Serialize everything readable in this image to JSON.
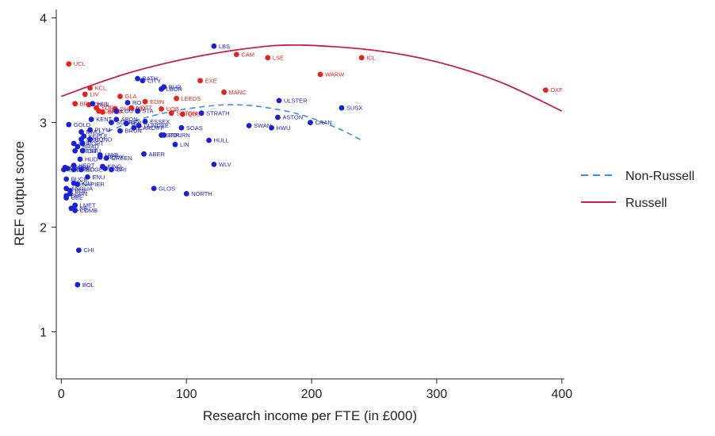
{
  "chart_data": {
    "type": "scatter",
    "title": "",
    "xlabel": "Research income per FTE (in £000)",
    "ylabel": "REF output score",
    "xlim": [
      -4,
      402
    ],
    "ylim": [
      0.55,
      4.08
    ],
    "xticks": [
      0,
      100,
      200,
      300,
      400
    ],
    "yticks": [
      1,
      2,
      3,
      4
    ],
    "grid": false,
    "legend_position": "right",
    "colors": {
      "russell": "#e8221a",
      "non_russell": "#1a1fd8",
      "russell_fit": "#c8204e",
      "non_russell_fit": "#3a8fe0"
    },
    "series": [
      {
        "name": "Russell",
        "points": [
          {
            "label": "UCL",
            "x": 6,
            "y": 3.56
          },
          {
            "label": "KCL",
            "x": 23,
            "y": 3.33
          },
          {
            "label": "LIV",
            "x": 19,
            "y": 3.27
          },
          {
            "label": "BRIS",
            "x": 11,
            "y": 3.18
          },
          {
            "label": "QMUL",
            "x": 22,
            "y": 3.17
          },
          {
            "label": "YORK",
            "x": 28,
            "y": 3.14
          },
          {
            "label": "CARD",
            "x": 30,
            "y": 3.11
          },
          {
            "label": "SHEF",
            "x": 33,
            "y": 3.1
          },
          {
            "label": "GLA",
            "x": 47,
            "y": 3.25
          },
          {
            "label": "DURHAM",
            "x": 43,
            "y": 3.13
          },
          {
            "label": "NOTT",
            "x": 56,
            "y": 3.14
          },
          {
            "label": "EDIN",
            "x": 67,
            "y": 3.2
          },
          {
            "label": "LEEDS",
            "x": 92,
            "y": 3.23
          },
          {
            "label": "UOB",
            "x": 80,
            "y": 3.13
          },
          {
            "label": "SOTON",
            "x": 88,
            "y": 3.09
          },
          {
            "label": "QUB",
            "x": 97,
            "y": 3.08
          },
          {
            "label": "EXE",
            "x": 111,
            "y": 3.4
          },
          {
            "label": "MANC",
            "x": 130,
            "y": 3.29
          },
          {
            "label": "CAM",
            "x": 140,
            "y": 3.65
          },
          {
            "label": "LSE",
            "x": 165,
            "y": 3.62
          },
          {
            "label": "WARW",
            "x": 207,
            "y": 3.46
          },
          {
            "label": "ICL",
            "x": 240,
            "y": 3.62
          },
          {
            "label": "OXF",
            "x": 387,
            "y": 3.31
          }
        ]
      },
      {
        "name": "Non-Russell",
        "points": [
          {
            "label": "LBS",
            "x": 122,
            "y": 3.73
          },
          {
            "label": "BATH",
            "x": 61,
            "y": 3.42
          },
          {
            "label": "CITY",
            "x": 65,
            "y": 3.4
          },
          {
            "label": "BUR",
            "x": 82,
            "y": 3.34
          },
          {
            "label": "LBOR",
            "x": 80,
            "y": 3.32
          },
          {
            "label": "ULSTER",
            "x": 174,
            "y": 3.21
          },
          {
            "label": "SUSX",
            "x": 224,
            "y": 3.14
          },
          {
            "label": "RO",
            "x": 53,
            "y": 3.19
          },
          {
            "label": "HUL",
            "x": 25,
            "y": 3.18
          },
          {
            "label": "LOU",
            "x": 44,
            "y": 3.11
          },
          {
            "label": "STA",
            "x": 61,
            "y": 3.11
          },
          {
            "label": "STRATH",
            "x": 112,
            "y": 3.09
          },
          {
            "label": "ASTON",
            "x": 173,
            "y": 3.05
          },
          {
            "label": "KENT",
            "x": 24,
            "y": 3.03
          },
          {
            "label": "ESSEX",
            "x": 67,
            "y": 3.01
          },
          {
            "label": "GOLD",
            "x": 6,
            "y": 2.98
          },
          {
            "label": "SURREY",
            "x": 40,
            "y": 3.0
          },
          {
            "label": "ABDN",
            "x": 44,
            "y": 3.03
          },
          {
            "label": "HW",
            "x": 52,
            "y": 2.99
          },
          {
            "label": "SWAN",
            "x": 150,
            "y": 2.97
          },
          {
            "label": "HWU",
            "x": 168,
            "y": 2.95
          },
          {
            "label": "CRAN",
            "x": 199,
            "y": 3.0
          },
          {
            "label": "SOAS",
            "x": 96,
            "y": 2.95
          },
          {
            "label": "CARDIFF",
            "x": 58,
            "y": 2.95
          },
          {
            "label": "DUNDEE",
            "x": 62,
            "y": 2.97
          },
          {
            "label": "BRUN",
            "x": 47,
            "y": 2.92
          },
          {
            "label": "STIR",
            "x": 80,
            "y": 2.88
          },
          {
            "label": "BOURN",
            "x": 82,
            "y": 2.88
          },
          {
            "label": "HULL",
            "x": 118,
            "y": 2.83
          },
          {
            "label": "LIN",
            "x": 91,
            "y": 2.79
          },
          {
            "label": "PLYM",
            "x": 23,
            "y": 2.93
          },
          {
            "label": "MMU",
            "x": 16,
            "y": 2.91
          },
          {
            "label": "KEELE",
            "x": 18,
            "y": 2.87
          },
          {
            "label": "SHU",
            "x": 16,
            "y": 2.84
          },
          {
            "label": "BOND",
            "x": 23,
            "y": 2.84
          },
          {
            "label": "LEIC",
            "x": 10,
            "y": 2.8
          },
          {
            "label": "PORT",
            "x": 17,
            "y": 2.8
          },
          {
            "label": "BRAD",
            "x": 13,
            "y": 2.77
          },
          {
            "label": "WEST",
            "x": 11,
            "y": 2.73
          },
          {
            "label": "DMU",
            "x": 17,
            "y": 2.73
          },
          {
            "label": "ABER",
            "x": 66,
            "y": 2.7
          },
          {
            "label": "UWE",
            "x": 31,
            "y": 2.69
          },
          {
            "label": "MIDDX",
            "x": 31,
            "y": 2.67
          },
          {
            "label": "GREEN",
            "x": 36,
            "y": 2.66
          },
          {
            "label": "HUD",
            "x": 15,
            "y": 2.65
          },
          {
            "label": "WLV",
            "x": 122,
            "y": 2.6
          },
          {
            "label": "HERT",
            "x": 10,
            "y": 2.59
          },
          {
            "label": "KING",
            "x": 33,
            "y": 2.58
          },
          {
            "label": "DERBY",
            "x": 3,
            "y": 2.57
          },
          {
            "label": "SALF",
            "x": 2,
            "y": 2.55
          },
          {
            "label": "TEES",
            "x": 5,
            "y": 2.56
          },
          {
            "label": "EDGE",
            "x": 16,
            "y": 2.55
          },
          {
            "label": "WINC",
            "x": 10,
            "y": 2.55
          },
          {
            "label": "COV",
            "x": 35,
            "y": 2.56
          },
          {
            "label": "GRI",
            "x": 40,
            "y": 2.55
          },
          {
            "label": "ENU",
            "x": 21,
            "y": 2.48
          },
          {
            "label": "BUCK",
            "x": 4,
            "y": 2.46
          },
          {
            "label": "GCU",
            "x": 10,
            "y": 2.42
          },
          {
            "label": "NAPIER",
            "x": 13,
            "y": 2.41
          },
          {
            "label": "GLOS",
            "x": 74,
            "y": 2.37
          },
          {
            "label": "NORTH",
            "x": 100,
            "y": 2.32
          },
          {
            "label": "ANGLIA",
            "x": 4,
            "y": 2.37
          },
          {
            "label": "ROE",
            "x": 7,
            "y": 2.35
          },
          {
            "label": "SUN",
            "x": 7,
            "y": 2.32
          },
          {
            "label": "BUC",
            "x": 4,
            "y": 2.3
          },
          {
            "label": "UEL",
            "x": 4,
            "y": 2.28
          },
          {
            "label": "LMET",
            "x": 11,
            "y": 2.21
          },
          {
            "label": "LSB",
            "x": 8,
            "y": 2.18
          },
          {
            "label": "COMB",
            "x": 11,
            "y": 2.16
          },
          {
            "label": "CHI",
            "x": 14,
            "y": 1.78
          },
          {
            "label": "BOL",
            "x": 13,
            "y": 1.45
          }
        ]
      }
    ],
    "fits": [
      {
        "name": "Non-Russell",
        "x": [
          30,
          60,
          90,
          120,
          140,
          160,
          190,
          220,
          240
        ],
        "y": [
          2.88,
          3.02,
          3.11,
          3.16,
          3.17,
          3.15,
          3.08,
          2.95,
          2.83
        ]
      },
      {
        "name": "Russell",
        "x": [
          0,
          50,
          100,
          150,
          190,
          250,
          300,
          350,
          400
        ],
        "y": [
          3.25,
          3.46,
          3.61,
          3.71,
          3.74,
          3.69,
          3.58,
          3.39,
          3.11
        ]
      }
    ],
    "legend": [
      {
        "label": "Non-Russell",
        "style": "dashed",
        "color": "#3a8fe0"
      },
      {
        "label": "Russell",
        "style": "solid",
        "color": "#c8204e"
      }
    ]
  }
}
